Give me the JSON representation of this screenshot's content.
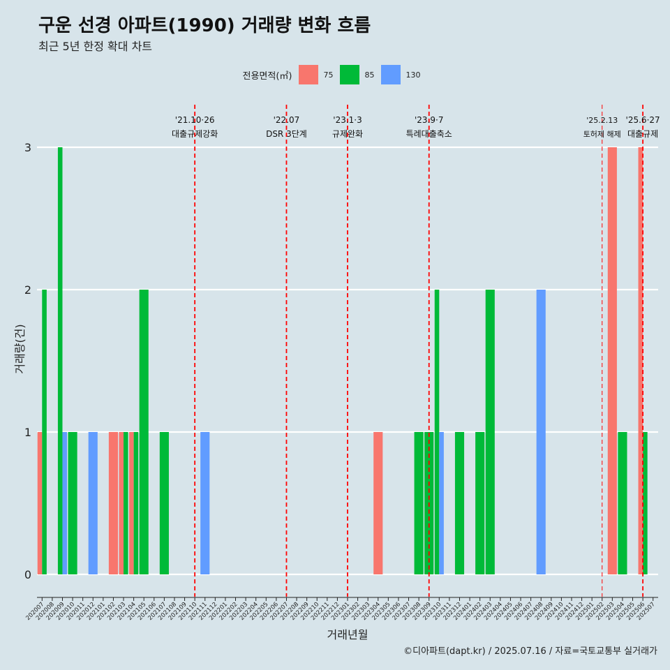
{
  "title": "구운 선경 아파트(1990) 거래량 변화 흐름",
  "subtitle": "최근 5년 한정 확대 차트",
  "legend_title": "전용면적(㎡)",
  "caption": "©디아파트(dapt.kr) / 2025.07.16 / 자료=국토교통부 실거래가",
  "colors": {
    "75": "#f8766d",
    "85": "#00ba38",
    "130": "#619cff",
    "ref_line": "#ff0000",
    "background": "#d7e4ea",
    "gridline": "#ffffff"
  },
  "chart_data": {
    "type": "bar",
    "xlabel": "거래년월",
    "ylabel": "거래량(건)",
    "ylim": [
      0,
      3
    ],
    "yticks": [
      0,
      1,
      2,
      3
    ],
    "grid": true,
    "legend_position": "top",
    "categories": [
      "202007",
      "202008",
      "202009",
      "202010",
      "202011",
      "202012",
      "202101",
      "202102",
      "202103",
      "202104",
      "202105",
      "202106",
      "202107",
      "202108",
      "202109",
      "202110",
      "202111",
      "202112",
      "202201",
      "202202",
      "202203",
      "202204",
      "202205",
      "202206",
      "202207",
      "202208",
      "202209",
      "202210",
      "202211",
      "202212",
      "202301",
      "202302",
      "202303",
      "202304",
      "202305",
      "202306",
      "202307",
      "202308",
      "202309",
      "202310",
      "202311",
      "202312",
      "202401",
      "202402",
      "202403",
      "202404",
      "202405",
      "202406",
      "202407",
      "202408",
      "202409",
      "202410",
      "202411",
      "202412",
      "202501",
      "202502",
      "202503",
      "202504",
      "202505",
      "202506",
      "202507"
    ],
    "series": [
      {
        "name": "75",
        "color": "#f8766d",
        "points": [
          {
            "x": "202007",
            "y": 1
          },
          {
            "x": "202102",
            "y": 1
          },
          {
            "x": "202103",
            "y": 1
          },
          {
            "x": "202104",
            "y": 1
          },
          {
            "x": "202304",
            "y": 1
          },
          {
            "x": "202503",
            "y": 3
          },
          {
            "x": "202506",
            "y": 3
          }
        ]
      },
      {
        "name": "85",
        "color": "#00ba38",
        "points": [
          {
            "x": "202007",
            "y": 2
          },
          {
            "x": "202009",
            "y": 3
          },
          {
            "x": "202010",
            "y": 1
          },
          {
            "x": "202103",
            "y": 1
          },
          {
            "x": "202104",
            "y": 1
          },
          {
            "x": "202105",
            "y": 2
          },
          {
            "x": "202107",
            "y": 1
          },
          {
            "x": "202308",
            "y": 1
          },
          {
            "x": "202309",
            "y": 1
          },
          {
            "x": "202310",
            "y": 2
          },
          {
            "x": "202312",
            "y": 1
          },
          {
            "x": "202402",
            "y": 1
          },
          {
            "x": "202403",
            "y": 2
          },
          {
            "x": "202504",
            "y": 1
          },
          {
            "x": "202506",
            "y": 1
          }
        ]
      },
      {
        "name": "130",
        "color": "#619cff",
        "points": [
          {
            "x": "202009",
            "y": 1
          },
          {
            "x": "202012",
            "y": 1
          },
          {
            "x": "202111",
            "y": 1
          },
          {
            "x": "202310",
            "y": 1
          },
          {
            "x": "202408",
            "y": 2
          }
        ]
      }
    ],
    "annotations": [
      {
        "at": "202110",
        "date": "'21.10·26",
        "text": "대출규제강화",
        "style": "dashed"
      },
      {
        "at": "202207",
        "date": "'22.07",
        "text": "DSR 3단계",
        "style": "dashed"
      },
      {
        "at": "202301",
        "date": "'23.1·3",
        "text": "규제완화",
        "style": "dashed"
      },
      {
        "at": "202309",
        "date": "'23.9·7",
        "text": "특례대출축소",
        "style": "dashed"
      },
      {
        "at": "202502",
        "date": "'25.2.13",
        "text": "토허제 해제",
        "style": "dashed-thin"
      },
      {
        "at": "202506",
        "date": "'25.6·27",
        "text": "대출규제",
        "style": "dashed"
      }
    ]
  }
}
